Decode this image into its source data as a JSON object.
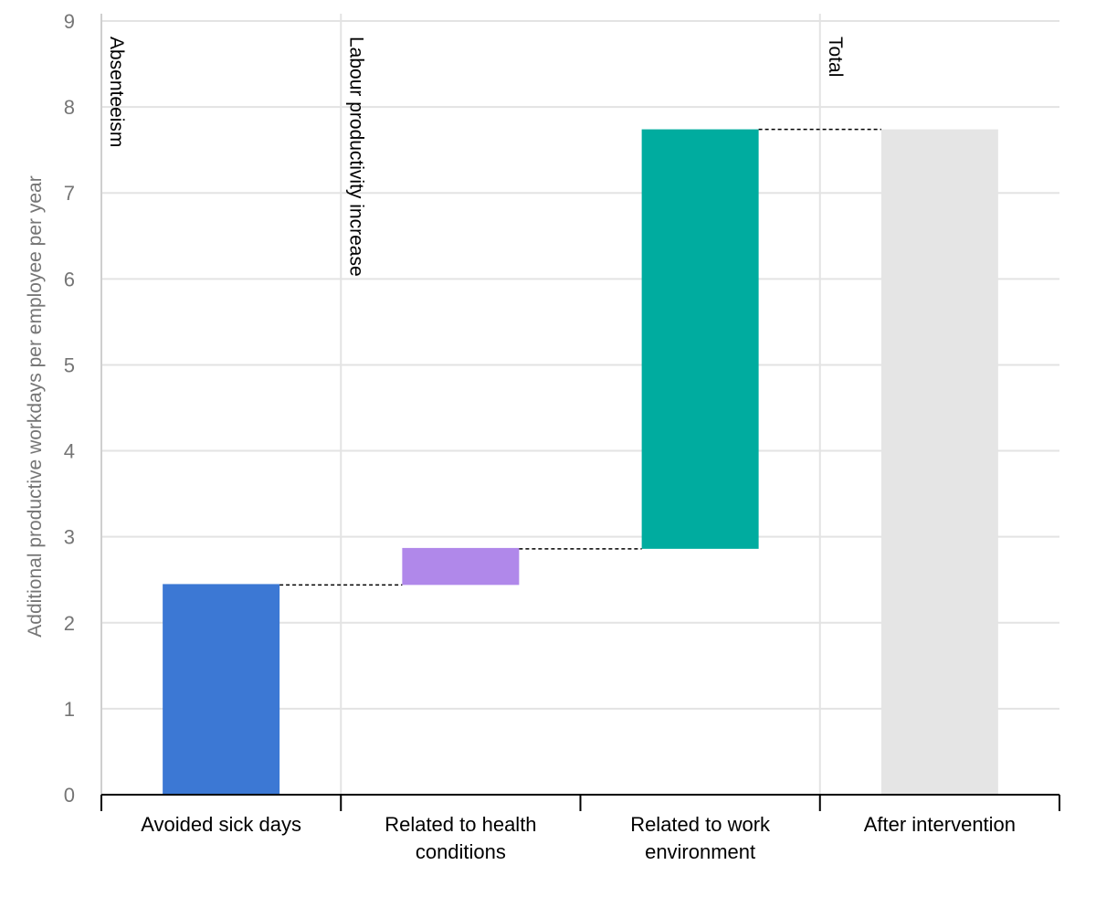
{
  "chart_data": {
    "type": "bar",
    "subtype": "waterfall",
    "categories": [
      "Avoided sick days",
      "Related to health conditions",
      "Related to work environment",
      "After intervention"
    ],
    "category_label_lines": [
      [
        "Avoided sick days"
      ],
      [
        "Related to health",
        "conditions"
      ],
      [
        "Related to work",
        "environment"
      ],
      [
        "After intervention"
      ]
    ],
    "bars": [
      {
        "category": "Avoided sick days",
        "start": 0,
        "end": 2.45,
        "value": 2.45,
        "color": "#3c78d4"
      },
      {
        "category": "Related to health conditions",
        "start": 2.44,
        "end": 2.87,
        "value": 0.43,
        "color": "#b088ea"
      },
      {
        "category": "Related to work environment",
        "start": 2.86,
        "end": 7.74,
        "value": 4.88,
        "color": "#00ac9f"
      },
      {
        "category": "After intervention",
        "start": 0,
        "end": 7.74,
        "value": 7.74,
        "color": "#e5e5e5"
      }
    ],
    "group_labels": [
      {
        "text": "Absenteeism",
        "group_start": 0
      },
      {
        "text": "Labour productivity increase",
        "group_start": 1
      },
      {
        "text": "Total",
        "group_start": 3
      }
    ],
    "connectors": [
      {
        "from": 0,
        "to": 1,
        "level": 2.44
      },
      {
        "from": 1,
        "to": 2,
        "level": 2.86
      },
      {
        "from": 2,
        "to": 3,
        "level": 7.74
      }
    ],
    "ylabel": "Additional productive workdays per employee per year",
    "xlabel": "",
    "ylim": [
      0,
      9
    ],
    "yticks": [
      0,
      1,
      2,
      3,
      4,
      5,
      6,
      7,
      8,
      9
    ],
    "grid": true
  }
}
